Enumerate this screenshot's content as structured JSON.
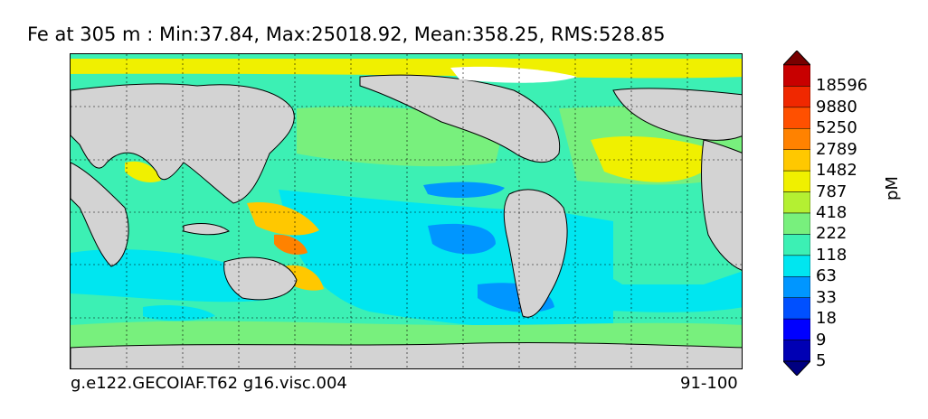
{
  "title": "Fe at 305 m : Min:37.84, Max:25018.92, Mean:358.25, RMS:528.85",
  "footer": {
    "case": "g.e122.GECOIAF.T62 g16.visc.004",
    "years": "91-100"
  },
  "colorbar": {
    "units": "pM",
    "labels": [
      "18596",
      "9880",
      "5250",
      "2789",
      "1482",
      "787",
      "418",
      "222",
      "118",
      "63",
      "33",
      "18",
      "9",
      "5"
    ],
    "colors": [
      "#000080",
      "#0000b4",
      "#0000ff",
      "#0050ff",
      "#0096ff",
      "#00e6f0",
      "#3cf0b4",
      "#78f07d",
      "#b4f032",
      "#f0f000",
      "#ffc800",
      "#ff8200",
      "#ff5000",
      "#f02800",
      "#c80000",
      "#780000"
    ]
  },
  "map": {
    "projection": "Robinson-like equirectangular",
    "ocean_field": "Fe",
    "land_color": "#d3d3d3"
  }
}
